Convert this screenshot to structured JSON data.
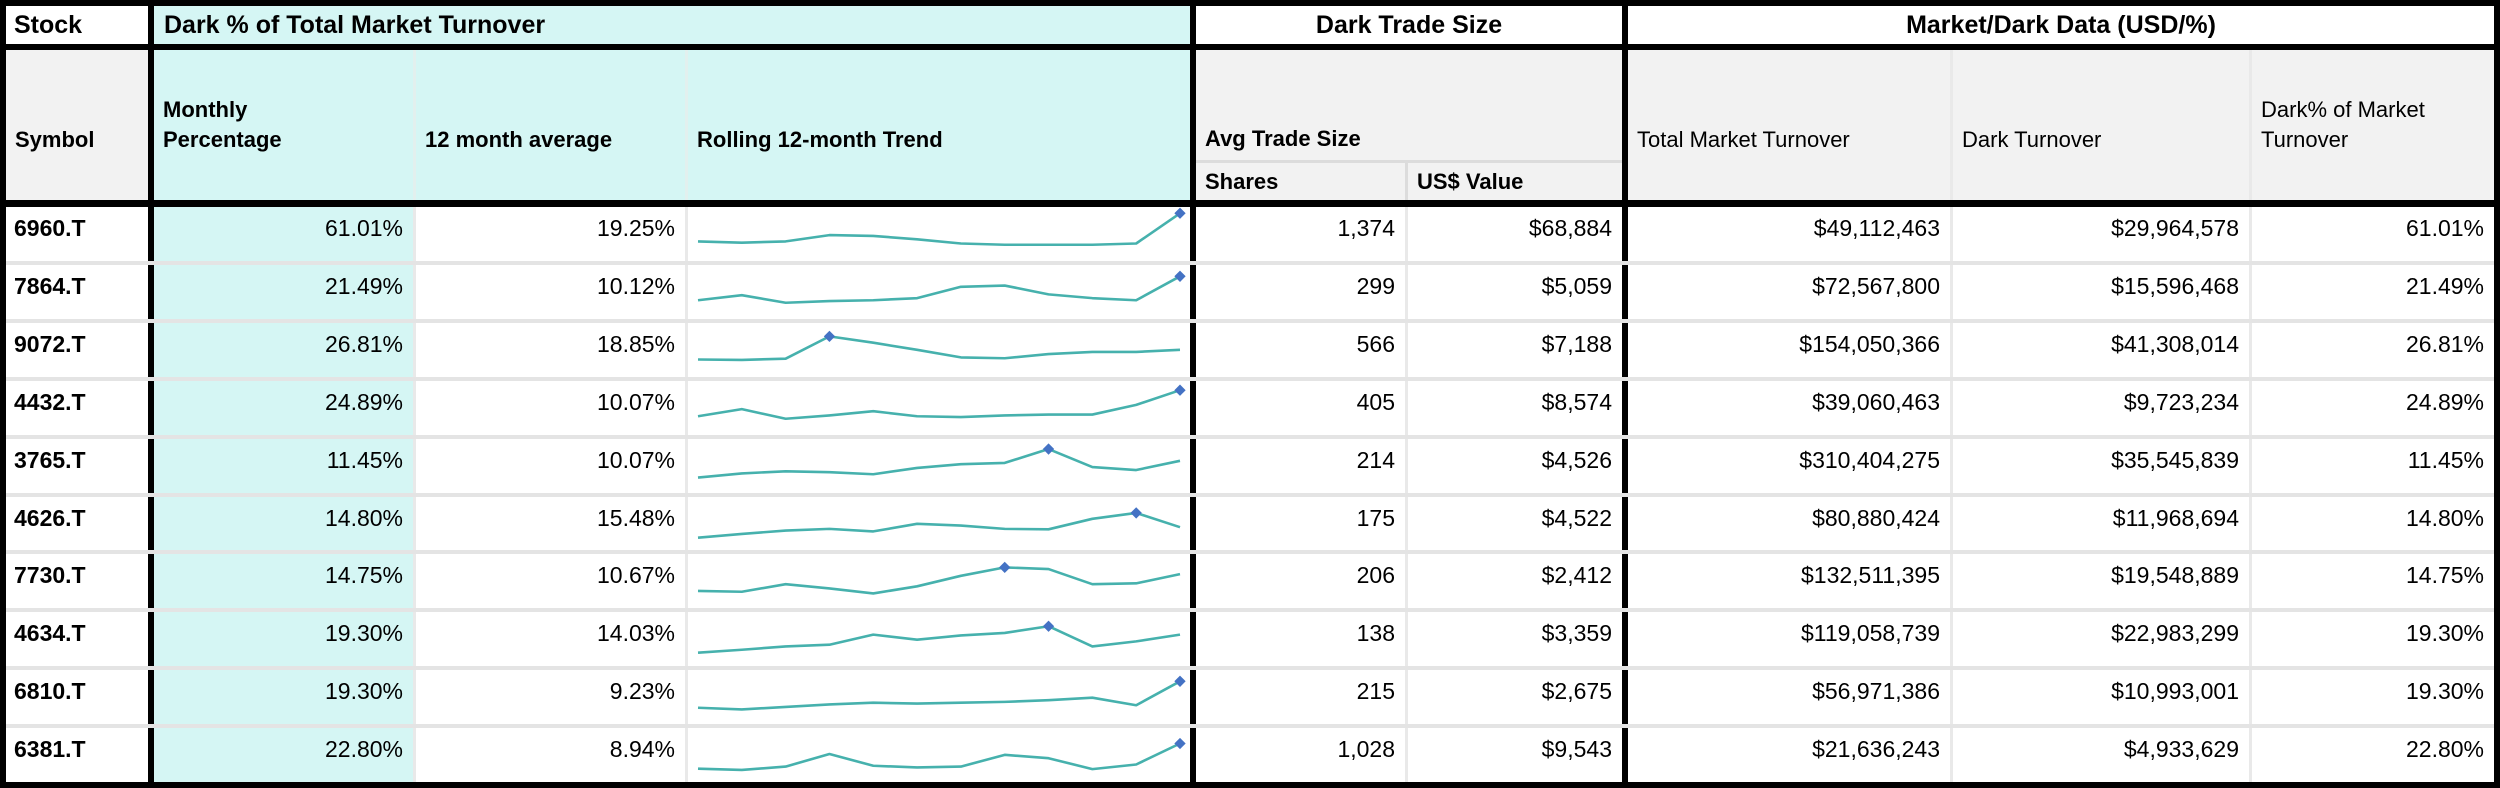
{
  "header": {
    "stock_group": "Stock",
    "dark_pct_group": "Dark % of Total Market Turnover",
    "trade_size_group": "Dark Trade Size",
    "market_dark_group": "Market/Dark Data (USD/%)"
  },
  "subheader": {
    "symbol": "Symbol",
    "monthly_percentage": "Monthly\nPercentage",
    "avg_12_month": "12 month average",
    "rolling_trend": "Rolling 12-month Trend",
    "avg_trade_size": "Avg Trade Size",
    "shares": "Shares",
    "usd_value": "US$ Value",
    "total_market_turnover": "Total Market Turnover",
    "dark_turnover": "Dark Turnover",
    "dark_pct_of_market": "Dark% of Market\nTurnover"
  },
  "colors": {
    "cyan_bg": "#d5f6f4",
    "subheader_bg": "#f2f2f2",
    "spark_line": "#46b1ad",
    "spark_marker": "#4472c4",
    "border_black": "#000000",
    "row_divider": "#e4e4e4"
  },
  "table": {
    "rows": [
      {
        "symbol": "6960.T",
        "monthly_pct": "61.01%",
        "avg_12m": "19.25%",
        "shares": "1,374",
        "usd_value": "$68,884",
        "total_market_turnover": "$49,112,463",
        "dark_turnover": "$29,964,578",
        "dark_pct": "61.01%",
        "trend": {
          "values": [
            0.3,
            0.27,
            0.3,
            0.45,
            0.43,
            0.35,
            0.25,
            0.22,
            0.22,
            0.22,
            0.25,
            0.97
          ],
          "marker_index": 11
        }
      },
      {
        "symbol": "7864.T",
        "monthly_pct": "21.49%",
        "avg_12m": "10.12%",
        "shares": "299",
        "usd_value": "$5,059",
        "total_market_turnover": "$72,567,800",
        "dark_turnover": "$15,596,468",
        "dark_pct": "21.49%",
        "trend": {
          "values": [
            0.28,
            0.4,
            0.22,
            0.26,
            0.28,
            0.33,
            0.6,
            0.63,
            0.42,
            0.33,
            0.28,
            0.85
          ],
          "marker_index": 11
        }
      },
      {
        "symbol": "9072.T",
        "monthly_pct": "26.81%",
        "avg_12m": "18.85%",
        "shares": "566",
        "usd_value": "$7,188",
        "total_market_turnover": "$154,050,366",
        "dark_turnover": "$41,308,014",
        "dark_pct": "26.81%",
        "trend": {
          "values": [
            0.25,
            0.24,
            0.27,
            0.8,
            0.65,
            0.48,
            0.3,
            0.28,
            0.38,
            0.43,
            0.43,
            0.48
          ],
          "marker_index": 3
        }
      },
      {
        "symbol": "4432.T",
        "monthly_pct": "24.89%",
        "avg_12m": "10.07%",
        "shares": "405",
        "usd_value": "$8,574",
        "total_market_turnover": "$39,060,463",
        "dark_turnover": "$9,723,234",
        "dark_pct": "24.89%",
        "trend": {
          "values": [
            0.28,
            0.45,
            0.22,
            0.3,
            0.4,
            0.28,
            0.26,
            0.3,
            0.32,
            0.32,
            0.55,
            0.9
          ],
          "marker_index": 11
        }
      },
      {
        "symbol": "3765.T",
        "monthly_pct": "11.45%",
        "avg_12m": "10.07%",
        "shares": "214",
        "usd_value": "$4,526",
        "total_market_turnover": "$310,404,275",
        "dark_turnover": "$35,545,839",
        "dark_pct": "11.45%",
        "trend": {
          "values": [
            0.2,
            0.3,
            0.35,
            0.33,
            0.28,
            0.43,
            0.52,
            0.55,
            0.88,
            0.45,
            0.38,
            0.6
          ],
          "marker_index": 8
        }
      },
      {
        "symbol": "4626.T",
        "monthly_pct": "14.80%",
        "avg_12m": "15.48%",
        "shares": "175",
        "usd_value": "$4,522",
        "total_market_turnover": "$80,880,424",
        "dark_turnover": "$11,968,694",
        "dark_pct": "14.80%",
        "trend": {
          "values": [
            0.15,
            0.24,
            0.32,
            0.36,
            0.3,
            0.48,
            0.44,
            0.36,
            0.35,
            0.6,
            0.74,
            0.4
          ],
          "marker_index": 10
        }
      },
      {
        "symbol": "7730.T",
        "monthly_pct": "14.75%",
        "avg_12m": "10.67%",
        "shares": "206",
        "usd_value": "$2,412",
        "total_market_turnover": "$132,511,395",
        "dark_turnover": "$19,548,889",
        "dark_pct": "14.75%",
        "trend": {
          "values": [
            0.24,
            0.22,
            0.4,
            0.3,
            0.18,
            0.35,
            0.6,
            0.8,
            0.76,
            0.4,
            0.42,
            0.64
          ],
          "marker_index": 7
        }
      },
      {
        "symbol": "4634.T",
        "monthly_pct": "19.30%",
        "avg_12m": "14.03%",
        "shares": "138",
        "usd_value": "$3,359",
        "total_market_turnover": "$119,058,739",
        "dark_turnover": "$22,983,299",
        "dark_pct": "19.30%",
        "trend": {
          "values": [
            0.15,
            0.22,
            0.3,
            0.34,
            0.58,
            0.46,
            0.56,
            0.62,
            0.78,
            0.3,
            0.42,
            0.58
          ],
          "marker_index": 8
        }
      },
      {
        "symbol": "6810.T",
        "monthly_pct": "19.30%",
        "avg_12m": "9.23%",
        "shares": "215",
        "usd_value": "$2,675",
        "total_market_turnover": "$56,971,386",
        "dark_turnover": "$10,993,001",
        "dark_pct": "19.30%",
        "trend": {
          "values": [
            0.22,
            0.18,
            0.24,
            0.3,
            0.34,
            0.32,
            0.34,
            0.36,
            0.4,
            0.46,
            0.28,
            0.85
          ],
          "marker_index": 11
        }
      },
      {
        "symbol": "6381.T",
        "monthly_pct": "22.80%",
        "avg_12m": "8.94%",
        "shares": "1,028",
        "usd_value": "$9,543",
        "total_market_turnover": "$21,636,243",
        "dark_turnover": "$4,933,629",
        "dark_pct": "22.80%",
        "trend": {
          "values": [
            0.15,
            0.12,
            0.2,
            0.5,
            0.22,
            0.18,
            0.2,
            0.48,
            0.4,
            0.14,
            0.25,
            0.75
          ],
          "marker_index": 11
        }
      }
    ]
  },
  "chart_data": {
    "type": "table",
    "title": "Dark % of Total Market Turnover / Dark Trade Size / Market-Dark Data (USD/%)",
    "columns": [
      "Symbol",
      "Monthly Percentage",
      "12 month average",
      "Rolling 12-month Trend",
      "Avg Trade Size Shares",
      "Avg Trade Size US$ Value",
      "Total Market Turnover",
      "Dark Turnover",
      "Dark% of Market Turnover"
    ],
    "rows": [
      [
        "6960.T",
        "61.01%",
        "19.25%",
        "sparkline",
        "1,374",
        "$68,884",
        "$49,112,463",
        "$29,964,578",
        "61.01%"
      ],
      [
        "7864.T",
        "21.49%",
        "10.12%",
        "sparkline",
        "299",
        "$5,059",
        "$72,567,800",
        "$15,596,468",
        "21.49%"
      ],
      [
        "9072.T",
        "26.81%",
        "18.85%",
        "sparkline",
        "566",
        "$7,188",
        "$154,050,366",
        "$41,308,014",
        "26.81%"
      ],
      [
        "4432.T",
        "24.89%",
        "10.07%",
        "sparkline",
        "405",
        "$8,574",
        "$39,060,463",
        "$9,723,234",
        "24.89%"
      ],
      [
        "3765.T",
        "11.45%",
        "10.07%",
        "sparkline",
        "214",
        "$4,526",
        "$310,404,275",
        "$35,545,839",
        "11.45%"
      ],
      [
        "4626.T",
        "14.80%",
        "15.48%",
        "sparkline",
        "175",
        "$4,522",
        "$80,880,424",
        "$11,968,694",
        "14.80%"
      ],
      [
        "7730.T",
        "14.75%",
        "10.67%",
        "sparkline",
        "206",
        "$2,412",
        "$132,511,395",
        "$19,548,889",
        "14.75%"
      ],
      [
        "4634.T",
        "19.30%",
        "14.03%",
        "sparkline",
        "138",
        "$3,359",
        "$119,058,739",
        "$22,983,299",
        "19.30%"
      ],
      [
        "6810.T",
        "19.30%",
        "9.23%",
        "sparkline",
        "215",
        "$2,675",
        "$56,971,386",
        "$10,993,001",
        "19.30%"
      ],
      [
        "6381.T",
        "22.80%",
        "8.94%",
        "sparkline",
        "1,028",
        "$9,543",
        "$21,636,243",
        "$4,933,629",
        "22.80%"
      ]
    ],
    "sparklines": {
      "type": "line",
      "points_per_series": 12,
      "unit": "normalized 0-1 (unlabeled rolling 12-month trend)",
      "marker_note": "blue diamond marker at peak/latest point",
      "series": [
        {
          "name": "6960.T",
          "values": [
            0.3,
            0.27,
            0.3,
            0.45,
            0.43,
            0.35,
            0.25,
            0.22,
            0.22,
            0.22,
            0.25,
            0.97
          ],
          "marker_index": 11
        },
        {
          "name": "7864.T",
          "values": [
            0.28,
            0.4,
            0.22,
            0.26,
            0.28,
            0.33,
            0.6,
            0.63,
            0.42,
            0.33,
            0.28,
            0.85
          ],
          "marker_index": 11
        },
        {
          "name": "9072.T",
          "values": [
            0.25,
            0.24,
            0.27,
            0.8,
            0.65,
            0.48,
            0.3,
            0.28,
            0.38,
            0.43,
            0.43,
            0.48
          ],
          "marker_index": 3
        },
        {
          "name": "4432.T",
          "values": [
            0.28,
            0.45,
            0.22,
            0.3,
            0.4,
            0.28,
            0.26,
            0.3,
            0.32,
            0.32,
            0.55,
            0.9
          ],
          "marker_index": 11
        },
        {
          "name": "3765.T",
          "values": [
            0.2,
            0.3,
            0.35,
            0.33,
            0.28,
            0.43,
            0.52,
            0.55,
            0.88,
            0.45,
            0.38,
            0.6
          ],
          "marker_index": 8
        },
        {
          "name": "4626.T",
          "values": [
            0.15,
            0.24,
            0.32,
            0.36,
            0.3,
            0.48,
            0.44,
            0.36,
            0.35,
            0.6,
            0.74,
            0.4
          ],
          "marker_index": 10
        },
        {
          "name": "7730.T",
          "values": [
            0.24,
            0.22,
            0.4,
            0.3,
            0.18,
            0.35,
            0.6,
            0.8,
            0.76,
            0.4,
            0.42,
            0.64
          ],
          "marker_index": 7
        },
        {
          "name": "4634.T",
          "values": [
            0.15,
            0.22,
            0.3,
            0.34,
            0.58,
            0.46,
            0.56,
            0.62,
            0.78,
            0.3,
            0.42,
            0.58
          ],
          "marker_index": 8
        },
        {
          "name": "6810.T",
          "values": [
            0.22,
            0.18,
            0.24,
            0.3,
            0.34,
            0.32,
            0.34,
            0.36,
            0.4,
            0.46,
            0.28,
            0.85
          ],
          "marker_index": 11
        },
        {
          "name": "6381.T",
          "values": [
            0.15,
            0.12,
            0.2,
            0.5,
            0.22,
            0.18,
            0.2,
            0.48,
            0.4,
            0.14,
            0.25,
            0.75
          ],
          "marker_index": 11
        }
      ]
    }
  }
}
